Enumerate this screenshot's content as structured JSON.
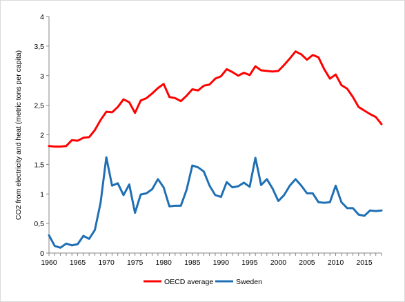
{
  "chart_data": {
    "type": "line",
    "title": "",
    "xlabel": "",
    "ylabel": "CO2 from electricity and heat (metric tons per capita)",
    "xlim": [
      1960,
      2018
    ],
    "ylim": [
      0,
      4
    ],
    "x_ticks": [
      "1960",
      "1965",
      "1970",
      "1975",
      "1980",
      "1985",
      "1990",
      "1995",
      "2000",
      "2005",
      "2010",
      "2015"
    ],
    "y_ticks": [
      "0",
      "0,5",
      "1",
      "1,5",
      "2",
      "2,5",
      "3",
      "3,5",
      "4"
    ],
    "grid": false,
    "legend_position": "bottom",
    "x": [
      1960,
      1961,
      1962,
      1963,
      1964,
      1965,
      1966,
      1967,
      1968,
      1969,
      1970,
      1971,
      1972,
      1973,
      1974,
      1975,
      1976,
      1977,
      1978,
      1979,
      1980,
      1981,
      1982,
      1983,
      1984,
      1985,
      1986,
      1987,
      1988,
      1989,
      1990,
      1991,
      1992,
      1993,
      1994,
      1995,
      1996,
      1997,
      1998,
      1999,
      2000,
      2001,
      2002,
      2003,
      2004,
      2005,
      2006,
      2007,
      2008,
      2009,
      2010,
      2011,
      2012,
      2013,
      2014,
      2015,
      2016,
      2017,
      2018
    ],
    "series": [
      {
        "name": "OECD average",
        "color": "#ff0000",
        "values": [
          1.81,
          1.8,
          1.8,
          1.81,
          1.91,
          1.9,
          1.95,
          1.96,
          2.08,
          2.25,
          2.39,
          2.38,
          2.47,
          2.6,
          2.55,
          2.37,
          2.58,
          2.62,
          2.7,
          2.79,
          2.86,
          2.64,
          2.62,
          2.57,
          2.66,
          2.77,
          2.75,
          2.83,
          2.85,
          2.95,
          2.99,
          3.11,
          3.06,
          3.0,
          3.05,
          3.01,
          3.16,
          3.09,
          3.08,
          3.07,
          3.08,
          3.18,
          3.29,
          3.41,
          3.36,
          3.27,
          3.35,
          3.31,
          3.11,
          2.95,
          3.02,
          2.84,
          2.78,
          2.64,
          2.47,
          2.41,
          2.35,
          2.3,
          2.18
        ]
      },
      {
        "name": "Sweden",
        "color": "#1f6fb4",
        "values": [
          0.3,
          0.12,
          0.09,
          0.16,
          0.13,
          0.15,
          0.29,
          0.24,
          0.39,
          0.85,
          1.62,
          1.14,
          1.18,
          0.98,
          1.16,
          0.68,
          0.99,
          1.01,
          1.08,
          1.25,
          1.11,
          0.79,
          0.8,
          0.8,
          1.07,
          1.48,
          1.45,
          1.38,
          1.14,
          0.98,
          0.95,
          1.2,
          1.11,
          1.13,
          1.19,
          1.12,
          1.61,
          1.15,
          1.25,
          1.09,
          0.88,
          0.98,
          1.14,
          1.25,
          1.14,
          1.01,
          1.01,
          0.86,
          0.85,
          0.86,
          1.14,
          0.86,
          0.76,
          0.76,
          0.65,
          0.63,
          0.72,
          0.71,
          0.72
        ]
      }
    ]
  }
}
